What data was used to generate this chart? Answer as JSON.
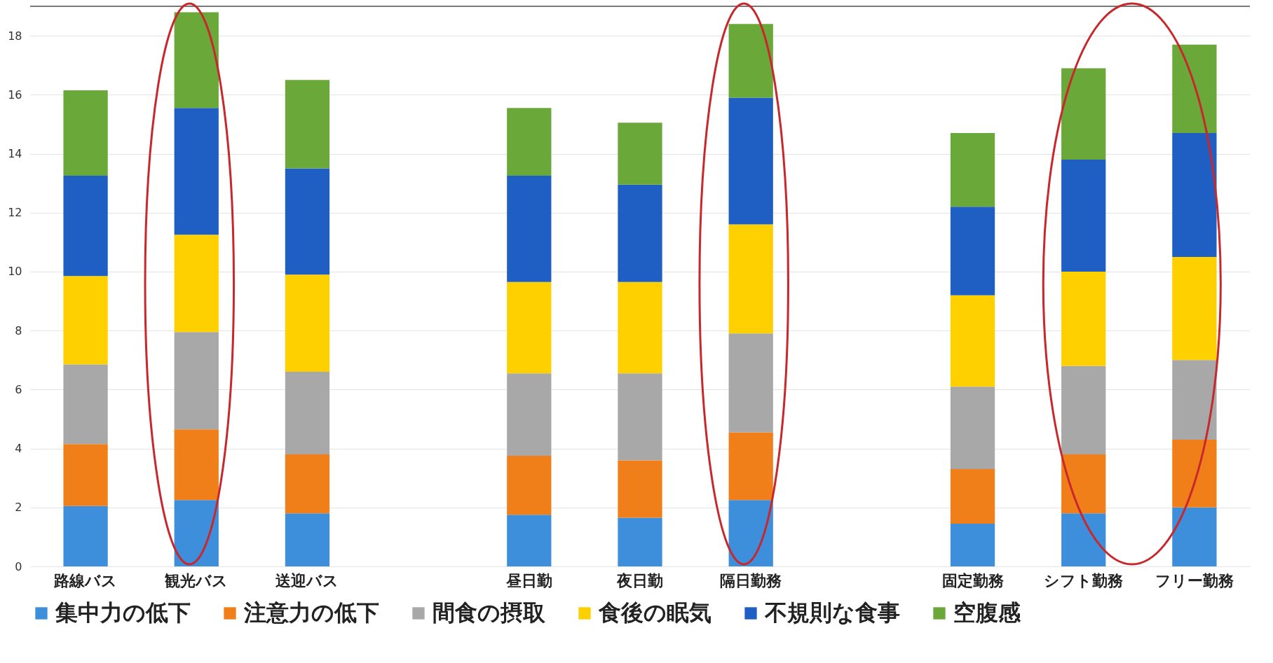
{
  "chart_data": {
    "type": "bar",
    "stacked": true,
    "categories": [
      "路線バス",
      "観光バス",
      "送迎バス",
      null,
      "昼日勤",
      "夜日勤",
      "隔日勤務",
      null,
      "固定勤務",
      "シフト勤務",
      "フリー勤務"
    ],
    "series": [
      {
        "name": "集中力の低下",
        "color": "#3d8fdc",
        "values": [
          2.05,
          2.25,
          1.8,
          null,
          1.75,
          1.65,
          2.25,
          null,
          1.45,
          1.8,
          2.0
        ]
      },
      {
        "name": "注意力の低下",
        "color": "#f07f1a",
        "values": [
          2.1,
          2.4,
          2.0,
          null,
          2.0,
          1.95,
          2.3,
          null,
          1.85,
          2.0,
          2.3
        ]
      },
      {
        "name": "間食の摂取",
        "color": "#a8a8a8",
        "values": [
          2.7,
          3.3,
          2.8,
          null,
          2.8,
          2.95,
          3.35,
          null,
          2.8,
          3.0,
          2.7
        ]
      },
      {
        "name": "食後の眠気",
        "color": "#ffd000",
        "values": [
          3.0,
          3.3,
          3.3,
          null,
          3.1,
          3.1,
          3.7,
          null,
          3.1,
          3.2,
          3.5
        ]
      },
      {
        "name": "不規則な食事",
        "color": "#1f5fc4",
        "values": [
          3.4,
          4.3,
          3.6,
          null,
          3.6,
          3.3,
          4.3,
          null,
          3.0,
          3.8,
          4.2
        ]
      },
      {
        "name": "空腹感",
        "color": "#6aa83a",
        "values": [
          2.9,
          3.25,
          3.0,
          null,
          2.3,
          2.1,
          2.5,
          null,
          2.5,
          3.1,
          3.0
        ]
      }
    ],
    "ylim": [
      0,
      19
    ],
    "yticks": [
      0,
      2,
      4,
      6,
      8,
      10,
      12,
      14,
      16,
      18
    ],
    "grid": "y",
    "legend": "bottom"
  }
}
